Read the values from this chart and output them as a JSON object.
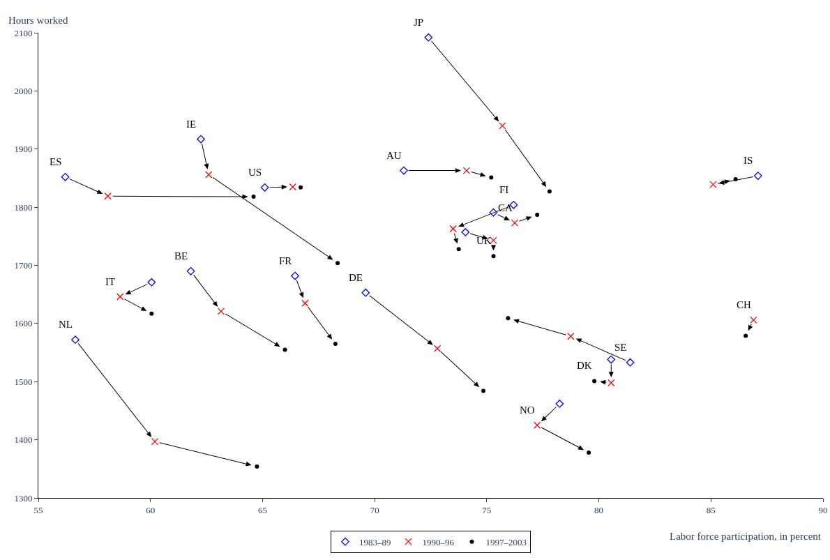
{
  "chart_data": {
    "type": "scatter",
    "xlabel": "Labor force participation, in percent",
    "ylabel": "Hours worked",
    "xlim": [
      55,
      90
    ],
    "xticks": [
      55,
      60,
      65,
      70,
      75,
      80,
      85,
      90
    ],
    "ylim": [
      1300,
      2100
    ],
    "yticks": [
      1300,
      1400,
      1500,
      1600,
      1700,
      1800,
      1900,
      2000,
      2100
    ],
    "legend": "bottom",
    "series": [
      {
        "name": "1983–89",
        "color": "#0000ff",
        "marker": "diamond",
        "x": [
          56.2,
          62.25,
          65.1,
          72.4,
          71.3,
          87.1,
          76.2,
          75.3,
          74.05,
          61.8,
          60.05,
          66.45,
          69.6,
          56.65,
          null,
          81.4,
          80.55,
          78.25
        ],
        "values": [
          1852,
          1917,
          1834,
          2092,
          1863,
          1854,
          1804,
          1791,
          1757,
          1690,
          1671,
          1682,
          1653,
          1572,
          null,
          1533,
          1538,
          1462
        ]
      },
      {
        "name": "1990–96",
        "color": "#ff0000",
        "marker": "cross",
        "x": [
          58.1,
          62.6,
          66.35,
          75.7,
          74.1,
          85.1,
          73.5,
          76.25,
          75.3,
          63.15,
          58.65,
          66.9,
          72.8,
          60.2,
          86.9,
          78.75,
          80.55,
          77.25
        ],
        "values": [
          1819,
          1856,
          1835,
          1940,
          1863,
          1839,
          1763,
          1773,
          1743,
          1621,
          1646,
          1635,
          1557,
          1397,
          1606,
          1578,
          1498,
          1425
        ]
      },
      {
        "name": "1997–2003",
        "color": "#000000",
        "marker": "circle",
        "x": [
          64.6,
          68.35,
          66.7,
          77.8,
          75.2,
          86.1,
          73.75,
          77.25,
          75.3,
          66.0,
          60.05,
          68.25,
          74.85,
          64.75,
          86.55,
          75.95,
          79.8,
          79.55
        ],
        "values": [
          1818,
          1704,
          1834,
          1827,
          1851,
          1848,
          1728,
          1787,
          1716,
          1555,
          1617,
          1565,
          1484,
          1354,
          1579,
          1609,
          1501,
          1378
        ]
      }
    ],
    "annotations": [
      {
        "text": "ES",
        "x": 56.2,
        "y": 1852
      },
      {
        "text": "IE",
        "x": 62.25,
        "y": 1917
      },
      {
        "text": "US",
        "x": 65.1,
        "y": 1834
      },
      {
        "text": "JP",
        "x": 72.4,
        "y": 2092
      },
      {
        "text": "AU",
        "x": 71.3,
        "y": 1863
      },
      {
        "text": "IS",
        "x": 87.1,
        "y": 1854
      },
      {
        "text": "FI",
        "x": 76.2,
        "y": 1804
      },
      {
        "text": "CA",
        "x": 76.25,
        "y": 1773
      },
      {
        "text": "UK",
        "x": 75.3,
        "y": 1716
      },
      {
        "text": "BE",
        "x": 61.8,
        "y": 1690
      },
      {
        "text": "IT",
        "x": 58.65,
        "y": 1646
      },
      {
        "text": "FR",
        "x": 66.45,
        "y": 1682
      },
      {
        "text": "DE",
        "x": 69.6,
        "y": 1653
      },
      {
        "text": "NL",
        "x": 56.65,
        "y": 1572
      },
      {
        "text": "CH",
        "x": 86.9,
        "y": 1606
      },
      {
        "text": "SE",
        "x": 81.4,
        "y": 1533
      },
      {
        "text": "DK",
        "x": 79.8,
        "y": 1501
      },
      {
        "text": "NO",
        "x": 77.25,
        "y": 1425
      }
    ]
  }
}
